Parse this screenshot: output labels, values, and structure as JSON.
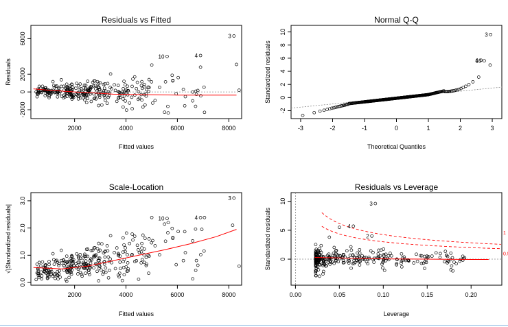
{
  "colors": {
    "points": "#000000",
    "smooth": "#ff0000",
    "refline": "#888888",
    "cook": "#ff0000"
  },
  "chart_data": [
    {
      "id": "resid-fitted",
      "type": "scatter",
      "title": "Residuals vs Fitted",
      "xlabel": "Fitted values",
      "ylabel": "Residuals",
      "xlim": [
        300,
        8500
      ],
      "ylim": [
        -3000,
        7500
      ],
      "xticks": [
        2000,
        4000,
        6000,
        8000
      ],
      "yticks": [
        -2000,
        0,
        2000,
        6000
      ],
      "hline": 0,
      "smooth": {
        "x": [
          400,
          1000,
          2000,
          3000,
          3500,
          4500,
          6000,
          8300
        ],
        "y": [
          350,
          200,
          0,
          -150,
          -250,
          -300,
          -350,
          -350
        ]
      },
      "outliers": [
        {
          "x": 8200,
          "y": 6300,
          "label": "3"
        },
        {
          "x": 6900,
          "y": 4100,
          "label": "4"
        },
        {
          "x": 5600,
          "y": 4000,
          "label": "10"
        },
        {
          "x": 8300,
          "y": 3100,
          "label": ""
        },
        {
          "x": 6900,
          "y": 2800,
          "label": ""
        },
        {
          "x": 8400,
          "y": 200,
          "label": ""
        }
      ]
    },
    {
      "id": "normal-qq",
      "type": "scatter",
      "title": "Normal Q-Q",
      "xlabel": "Theoretical Quantiles",
      "ylabel": "Standardized residuals",
      "xlim": [
        -3.3,
        3.3
      ],
      "ylim": [
        -3.2,
        11
      ],
      "xticks": [
        -3,
        -2,
        -1,
        0,
        1,
        2,
        3
      ],
      "yticks": [
        -2,
        0,
        2,
        4,
        6,
        8,
        10
      ],
      "refline": {
        "x": [
          -3.3,
          3.3
        ],
        "y": [
          -1.6,
          1.6
        ]
      },
      "outliers": [
        {
          "x": 2.95,
          "y": 9.6,
          "label": "3"
        },
        {
          "x": 2.65,
          "y": 5.7,
          "label": "4"
        },
        {
          "x": 2.75,
          "y": 5.6,
          "label": "10"
        }
      ]
    },
    {
      "id": "scale-location",
      "type": "scatter",
      "title": "Scale-Location",
      "xlabel": "Fitted values",
      "ylabel": "√|Standardized residuals|",
      "xlim": [
        300,
        8500
      ],
      "ylim": [
        -0.1,
        3.3
      ],
      "xticks": [
        2000,
        4000,
        6000,
        8000
      ],
      "yticks": [
        0.0,
        1.0,
        2.0,
        3.0
      ],
      "smooth": {
        "x": [
          400,
          1500,
          2500,
          3500,
          4500,
          5500,
          6500,
          7500,
          8300
        ],
        "y": [
          0.55,
          0.5,
          0.6,
          0.8,
          1.0,
          1.2,
          1.42,
          1.68,
          1.95
        ]
      },
      "outliers": [
        {
          "x": 8200,
          "y": 3.1,
          "label": "3"
        },
        {
          "x": 6900,
          "y": 2.38,
          "label": "4"
        },
        {
          "x": 5600,
          "y": 2.35,
          "label": "10"
        },
        {
          "x": 8150,
          "y": 2.1,
          "label": ""
        },
        {
          "x": 6950,
          "y": 1.95,
          "label": ""
        },
        {
          "x": 8400,
          "y": 0.6,
          "label": ""
        }
      ]
    },
    {
      "id": "resid-leverage",
      "type": "scatter",
      "title": "Residuals vs Leverage",
      "xlabel": "Leverage",
      "ylabel": "Standardized residuals",
      "xlim": [
        -0.005,
        0.235
      ],
      "ylim": [
        -4.5,
        11.5
      ],
      "xticks": [
        0.0,
        0.05,
        0.1,
        0.15,
        0.2
      ],
      "xtick_labels": [
        "0.00",
        "0.05",
        "0.10",
        "0.15",
        "0.20"
      ],
      "yticks": [
        0,
        5,
        10
      ],
      "hline": 0,
      "vline": 0,
      "smooth": {
        "x": [
          0.022,
          0.05,
          0.1,
          0.15,
          0.2,
          0.22
        ],
        "y": [
          0.3,
          0.2,
          0.05,
          0.0,
          -0.05,
          -0.05
        ]
      },
      "cook_labels": [
        "1",
        "0.5"
      ],
      "outliers": [
        {
          "x": 0.091,
          "y": 9.6,
          "label": "3"
        },
        {
          "x": 0.066,
          "y": 5.7,
          "label": "4"
        },
        {
          "x": 0.087,
          "y": 4.0,
          "label": "2"
        },
        {
          "x": 0.05,
          "y": 5.5,
          "label": ""
        }
      ]
    }
  ]
}
